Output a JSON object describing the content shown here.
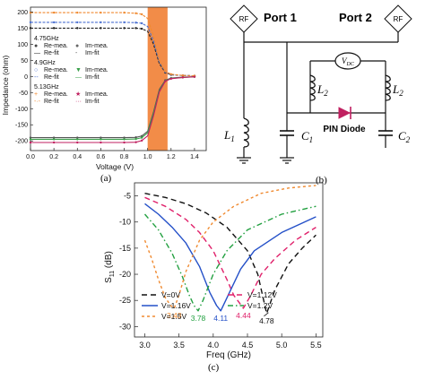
{
  "panels": {
    "a": {
      "caption": "(a)",
      "ylabel": "Impedance (ohm)",
      "xlabel": "Voltage (V)",
      "xticks": [
        "0.0",
        "0.2",
        "0.4",
        "0.6",
        "0.8",
        "1.0",
        "1.2",
        "1.4"
      ],
      "yticks": [
        "200",
        "150",
        "100",
        "50",
        "0",
        "-50",
        "-100",
        "-150",
        "-200"
      ],
      "legend_groups": [
        {
          "title": "4.75GHz",
          "entries": [
            {
              "label": "Re-mea.",
              "marker": "●",
              "color": "#444444"
            },
            {
              "label": "Im-mea.",
              "marker": "●",
              "color": "#666666"
            },
            {
              "label": "Re-fit",
              "marker": "—",
              "color": "#222222"
            },
            {
              "label": "Im-fit",
              "marker": "-",
              "color": "#555555"
            }
          ]
        },
        {
          "title": "4.9GHz",
          "entries": [
            {
              "label": "Re-mea.",
              "marker": "○",
              "color": "#4a6fd0"
            },
            {
              "label": "Im-mea.",
              "marker": "▼",
              "color": "#3aa04a"
            },
            {
              "label": "Re-fit",
              "marker": "--",
              "color": "#4a6fd0"
            },
            {
              "label": "Im-fit",
              "marker": "—",
              "color": "#3aa04a"
            }
          ]
        },
        {
          "title": "5.13GHz",
          "entries": [
            {
              "label": "Re-mea.",
              "marker": "+",
              "color": "#f08a30"
            },
            {
              "label": "Im-mea.",
              "marker": "★",
              "color": "#c02060"
            },
            {
              "label": "Re-fit",
              "marker": "-·-",
              "color": "#f08a30"
            },
            {
              "label": "Im-fit",
              "marker": "···",
              "color": "#c02060"
            }
          ]
        }
      ]
    },
    "b": {
      "caption": "(b)",
      "port1": "Port 1",
      "port2": "Port 2",
      "rf": "RF",
      "l1": "L",
      "l1_sub": "1",
      "l2": "L",
      "l2_sub": "2",
      "c1": "C",
      "c1_sub": "1",
      "c2": "C",
      "c2_sub": "2",
      "vdc": "V",
      "vdc_sub": "DC",
      "diode": "PIN Diode"
    },
    "c": {
      "caption": "(c)"
    }
  },
  "chart_data": [
    {
      "type": "line",
      "panel": "a",
      "xlabel": "Voltage (V)",
      "ylabel": "Impedance (ohm)",
      "xlim": [
        0.0,
        1.5
      ],
      "ylim": [
        -230,
        215
      ],
      "highlight_band": {
        "x": [
          1.0,
          1.17
        ],
        "color": "#f07828"
      },
      "series": [
        {
          "group": "4.75GHz",
          "kind": "Re",
          "color": "#222222",
          "x": [
            0,
            0.2,
            0.4,
            0.6,
            0.8,
            0.9,
            0.95,
            1.0,
            1.05,
            1.1,
            1.15,
            1.2,
            1.3,
            1.4
          ],
          "y": [
            150,
            150,
            150,
            150,
            150,
            150,
            148,
            140,
            100,
            40,
            12,
            5,
            3,
            2
          ]
        },
        {
          "group": "4.75GHz",
          "kind": "Im",
          "color": "#555555",
          "x": [
            0,
            0.2,
            0.4,
            0.6,
            0.8,
            0.9,
            0.95,
            1.0,
            1.05,
            1.1,
            1.15,
            1.2,
            1.3,
            1.4
          ],
          "y": [
            -190,
            -190,
            -190,
            -190,
            -190,
            -189,
            -185,
            -170,
            -110,
            -40,
            -12,
            -5,
            -2,
            -1
          ]
        },
        {
          "group": "4.9GHz",
          "kind": "Re",
          "color": "#4a6fd0",
          "x": [
            0,
            0.2,
            0.4,
            0.6,
            0.8,
            0.9,
            0.95,
            1.0,
            1.05,
            1.1,
            1.15,
            1.2,
            1.3,
            1.4
          ],
          "y": [
            168,
            168,
            168,
            168,
            168,
            167,
            165,
            155,
            110,
            45,
            14,
            6,
            3,
            2
          ]
        },
        {
          "group": "4.9GHz",
          "kind": "Im",
          "color": "#3aa04a",
          "x": [
            0,
            0.2,
            0.4,
            0.6,
            0.8,
            0.9,
            0.95,
            1.0,
            1.05,
            1.1,
            1.15,
            1.2,
            1.3,
            1.4
          ],
          "y": [
            -195,
            -195,
            -195,
            -195,
            -195,
            -194,
            -190,
            -175,
            -115,
            -45,
            -14,
            -6,
            -3,
            -1
          ]
        },
        {
          "group": "5.13GHz",
          "kind": "Re",
          "color": "#f08a30",
          "x": [
            0,
            0.2,
            0.4,
            0.6,
            0.8,
            0.9,
            0.95,
            1.0,
            1.05,
            1.1,
            1.15,
            1.2,
            1.3,
            1.4
          ],
          "y": [
            198,
            198,
            198,
            198,
            198,
            196,
            193,
            180,
            125,
            50,
            16,
            7,
            3,
            2
          ]
        },
        {
          "group": "5.13GHz",
          "kind": "Im",
          "color": "#c02060",
          "x": [
            0,
            0.2,
            0.4,
            0.6,
            0.8,
            0.9,
            0.95,
            1.0,
            1.05,
            1.1,
            1.15,
            1.2,
            1.3,
            1.4
          ],
          "y": [
            -205,
            -205,
            -205,
            -205,
            -205,
            -204,
            -199,
            -184,
            -122,
            -48,
            -15,
            -7,
            -3,
            -1
          ]
        }
      ]
    },
    {
      "type": "line",
      "panel": "c",
      "xlabel": "Freq (GHz)",
      "ylabel": "S11 (dB)",
      "ylabel_main": "S",
      "ylabel_sub": "11",
      "ylabel_unit": " (dB)",
      "xlim": [
        2.85,
        5.6
      ],
      "ylim": [
        -32,
        -2.5
      ],
      "xticks": [
        "3.0",
        "3.5",
        "4.0",
        "4.5",
        "5.0",
        "5.5"
      ],
      "yticks": [
        "-5",
        "-10",
        "-15",
        "-20",
        "-25",
        "-30"
      ],
      "legend": [
        {
          "label": "V=0V",
          "color": "#111111",
          "dash": "6,4"
        },
        {
          "label": "V=1.12V",
          "color": "#e0206a",
          "dash": "6,4"
        },
        {
          "label": "V=1.16V",
          "color": "#2450c8",
          "dash": ""
        },
        {
          "label": "V=1.2V",
          "color": "#22a040",
          "dash": "6,3,1.5,3"
        },
        {
          "label": "V=1.5V",
          "color": "#f08a30",
          "dash": "3,3"
        }
      ],
      "series": [
        {
          "name": "V=0V",
          "color": "#111111",
          "dash": "6,4",
          "x": [
            3.0,
            3.3,
            3.6,
            3.9,
            4.2,
            4.5,
            4.65,
            4.78,
            4.9,
            5.1,
            5.3,
            5.5
          ],
          "y": [
            -4.5,
            -5.3,
            -6.5,
            -8.3,
            -11,
            -15.5,
            -20,
            -27.5,
            -23,
            -18,
            -15,
            -12.5
          ]
        },
        {
          "name": "V=1.12V",
          "color": "#e0206a",
          "dash": "6,4",
          "x": [
            3.0,
            3.3,
            3.6,
            3.8,
            4.0,
            4.2,
            4.3,
            4.44,
            4.55,
            4.7,
            4.9,
            5.2,
            5.5
          ],
          "y": [
            -5.3,
            -7,
            -9.5,
            -12,
            -15.5,
            -21,
            -24,
            -26.5,
            -24,
            -20,
            -17,
            -13.5,
            -11
          ]
        },
        {
          "name": "V=1.16V",
          "color": "#2450c8",
          "dash": "",
          "x": [
            3.0,
            3.2,
            3.4,
            3.6,
            3.8,
            3.95,
            4.05,
            4.11,
            4.2,
            4.4,
            4.6,
            5.0,
            5.5
          ],
          "y": [
            -6.5,
            -8.5,
            -11,
            -14,
            -18.5,
            -23.5,
            -26,
            -27,
            -24.5,
            -19,
            -15.5,
            -12,
            -9
          ]
        },
        {
          "name": "V=1.2V",
          "color": "#22a040",
          "dash": "6,3,1.5,3",
          "x": [
            3.0,
            3.2,
            3.4,
            3.55,
            3.65,
            3.72,
            3.78,
            3.85,
            4.0,
            4.2,
            4.5,
            5.0,
            5.5
          ],
          "y": [
            -8.5,
            -11.5,
            -16,
            -20.5,
            -24,
            -26,
            -27,
            -25,
            -20,
            -15.5,
            -11.5,
            -8.5,
            -7
          ]
        },
        {
          "name": "V=1.5V",
          "color": "#f08a30",
          "dash": "3,3",
          "x": [
            3.0,
            3.1,
            3.2,
            3.3,
            3.38,
            3.43,
            3.5,
            3.6,
            3.8,
            4.0,
            4.3,
            4.7,
            5.1,
            5.5
          ],
          "y": [
            -13.5,
            -17,
            -21,
            -24.5,
            -26,
            -26.5,
            -24,
            -19.5,
            -13.5,
            -10,
            -7,
            -4.5,
            -3.5,
            -3
          ]
        }
      ],
      "annotations": [
        {
          "text": "3.43",
          "x": 3.43,
          "y": -26.5,
          "color": "#f08a30"
        },
        {
          "text": "3.78",
          "x": 3.78,
          "y": -27,
          "color": "#22a040"
        },
        {
          "text": "4.11",
          "x": 4.11,
          "y": -27,
          "color": "#2450c8"
        },
        {
          "text": "4.44",
          "x": 4.44,
          "y": -26.5,
          "color": "#e0206a"
        },
        {
          "text": "4.78",
          "x": 4.78,
          "y": -27.5,
          "color": "#111111"
        }
      ]
    }
  ]
}
